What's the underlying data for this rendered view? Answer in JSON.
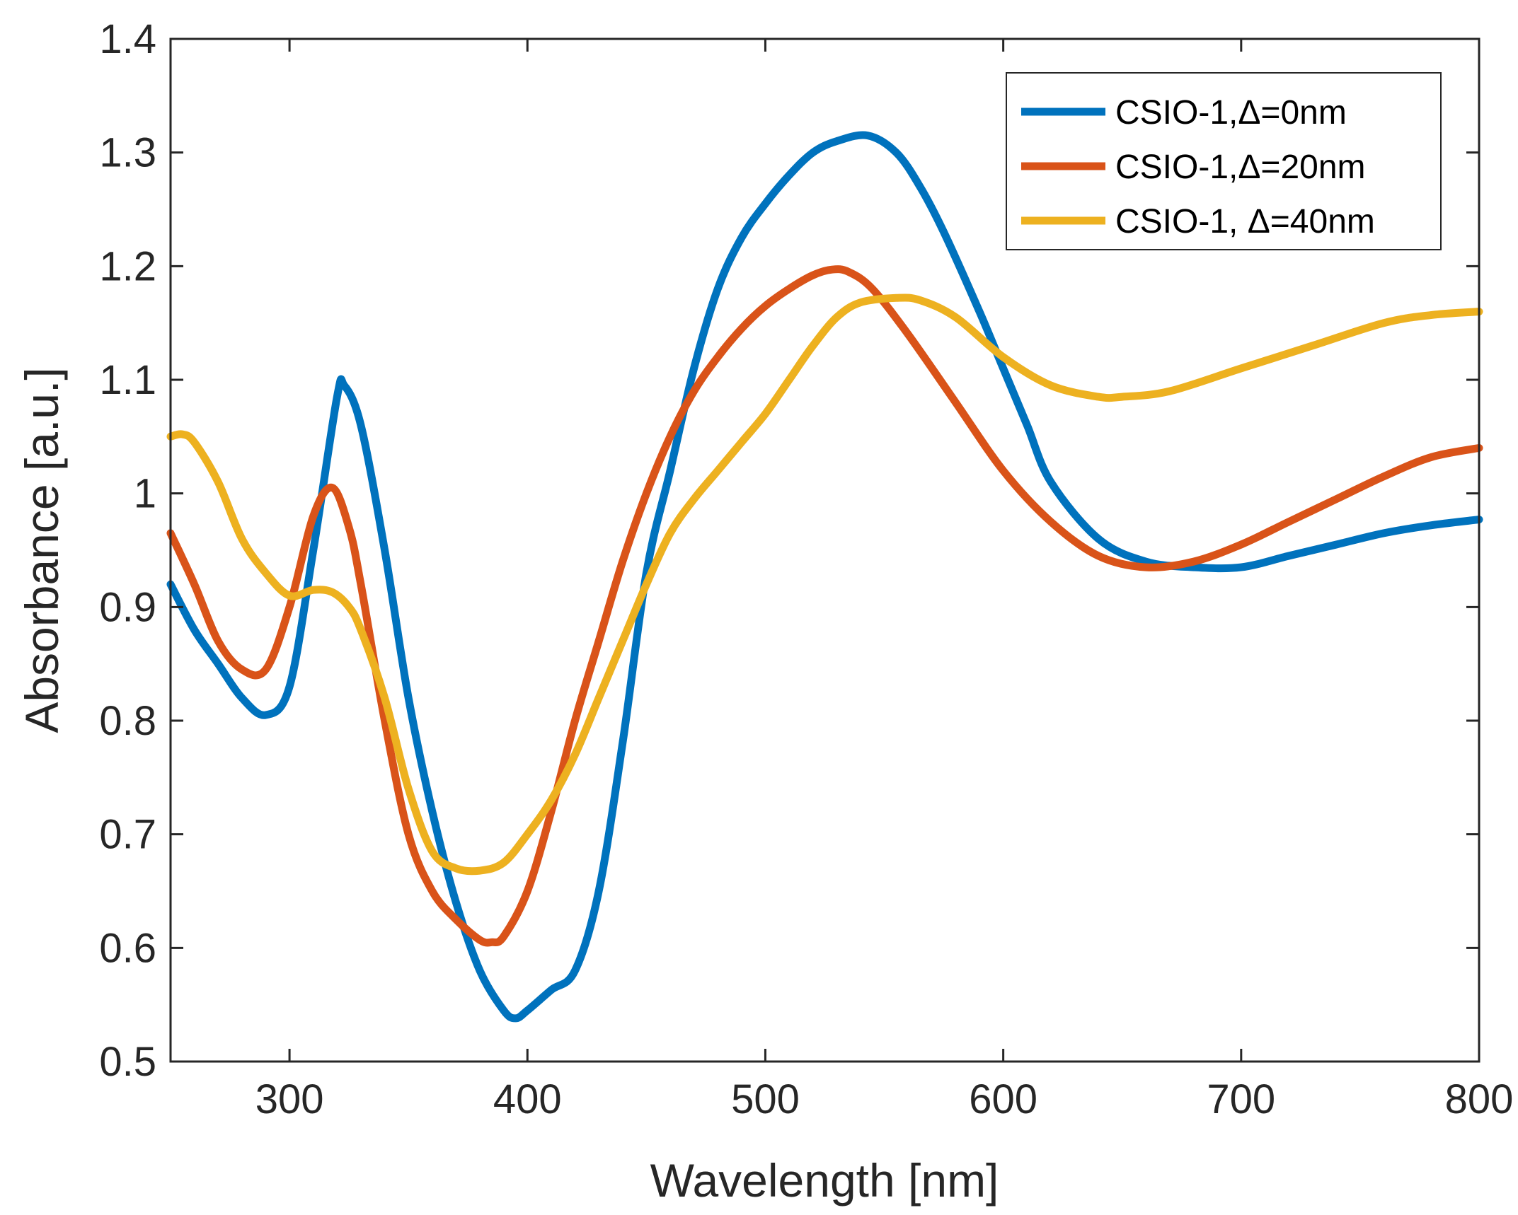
{
  "chart_data": {
    "type": "line",
    "title": "",
    "xlabel": "Wavelength [nm]",
    "ylabel": "Absorbance [a.u.]",
    "xlim": [
      250,
      800
    ],
    "ylim": [
      0.5,
      1.4
    ],
    "xticks": [
      300,
      400,
      500,
      600,
      700,
      800
    ],
    "xtick_labels": [
      "300",
      "400",
      "500",
      "600",
      "700",
      "800"
    ],
    "yticks": [
      0.5,
      0.6,
      0.7,
      0.8,
      0.9,
      1.0,
      1.1,
      1.2,
      1.3,
      1.4
    ],
    "ytick_labels": [
      "0.5",
      "0.6",
      "0.7",
      "0.8",
      "0.9",
      "1",
      "1.1",
      "1.2",
      "1.3",
      "1.4"
    ],
    "grid": false,
    "legend_position": "top-right",
    "series": [
      {
        "name": "CSIO-1,Δ=0nm",
        "color": "#0072BD",
        "x": [
          250,
          260,
          270,
          280,
          290,
          300,
          310,
          320,
          323,
          330,
          340,
          350,
          360,
          370,
          380,
          390,
          395,
          400,
          410,
          420,
          430,
          440,
          450,
          460,
          470,
          480,
          490,
          500,
          510,
          520,
          530,
          543,
          555,
          565,
          575,
          590,
          600,
          610,
          620,
          640,
          660,
          680,
          700,
          720,
          740,
          760,
          780,
          800
        ],
        "y": [
          0.92,
          0.88,
          0.85,
          0.82,
          0.805,
          0.83,
          0.95,
          1.085,
          1.095,
          1.06,
          0.95,
          0.82,
          0.72,
          0.64,
          0.58,
          0.545,
          0.538,
          0.545,
          0.563,
          0.58,
          0.65,
          0.78,
          0.93,
          1.02,
          1.11,
          1.18,
          1.225,
          1.255,
          1.28,
          1.3,
          1.31,
          1.315,
          1.3,
          1.27,
          1.23,
          1.16,
          1.11,
          1.06,
          1.01,
          0.96,
          0.94,
          0.935,
          0.935,
          0.945,
          0.955,
          0.965,
          0.972,
          0.977
        ]
      },
      {
        "name": "CSIO-1,Δ=20nm",
        "color": "#D95319",
        "x": [
          250,
          260,
          270,
          280,
          290,
          300,
          310,
          318,
          325,
          330,
          340,
          350,
          360,
          370,
          380,
          385,
          390,
          400,
          410,
          420,
          430,
          440,
          450,
          460,
          470,
          480,
          490,
          500,
          510,
          520,
          528,
          535,
          545,
          560,
          580,
          600,
          620,
          640,
          660,
          680,
          700,
          720,
          740,
          760,
          780,
          800
        ],
        "y": [
          0.965,
          0.92,
          0.87,
          0.845,
          0.845,
          0.9,
          0.98,
          1.005,
          0.97,
          0.92,
          0.8,
          0.7,
          0.65,
          0.625,
          0.607,
          0.605,
          0.61,
          0.65,
          0.72,
          0.8,
          0.87,
          0.94,
          1.0,
          1.05,
          1.09,
          1.12,
          1.145,
          1.165,
          1.18,
          1.192,
          1.197,
          1.195,
          1.18,
          1.14,
          1.08,
          1.02,
          0.975,
          0.945,
          0.935,
          0.94,
          0.955,
          0.975,
          0.995,
          1.015,
          1.032,
          1.04
        ]
      },
      {
        "name": "CSIO-1, Δ=40nm",
        "color": "#EDB120",
        "x": [
          250,
          255,
          260,
          270,
          280,
          290,
          300,
          310,
          318,
          325,
          330,
          340,
          350,
          360,
          370,
          380,
          390,
          400,
          410,
          420,
          430,
          440,
          450,
          460,
          470,
          480,
          490,
          500,
          510,
          520,
          530,
          540,
          555,
          565,
          580,
          600,
          620,
          640,
          650,
          670,
          700,
          730,
          760,
          780,
          800
        ],
        "y": [
          1.05,
          1.052,
          1.045,
          1.01,
          0.96,
          0.93,
          0.91,
          0.915,
          0.913,
          0.9,
          0.88,
          0.82,
          0.74,
          0.685,
          0.67,
          0.668,
          0.675,
          0.7,
          0.73,
          0.77,
          0.82,
          0.87,
          0.92,
          0.965,
          0.995,
          1.02,
          1.045,
          1.07,
          1.1,
          1.13,
          1.155,
          1.168,
          1.172,
          1.17,
          1.155,
          1.12,
          1.095,
          1.085,
          1.085,
          1.09,
          1.11,
          1.13,
          1.15,
          1.157,
          1.16
        ]
      }
    ]
  }
}
